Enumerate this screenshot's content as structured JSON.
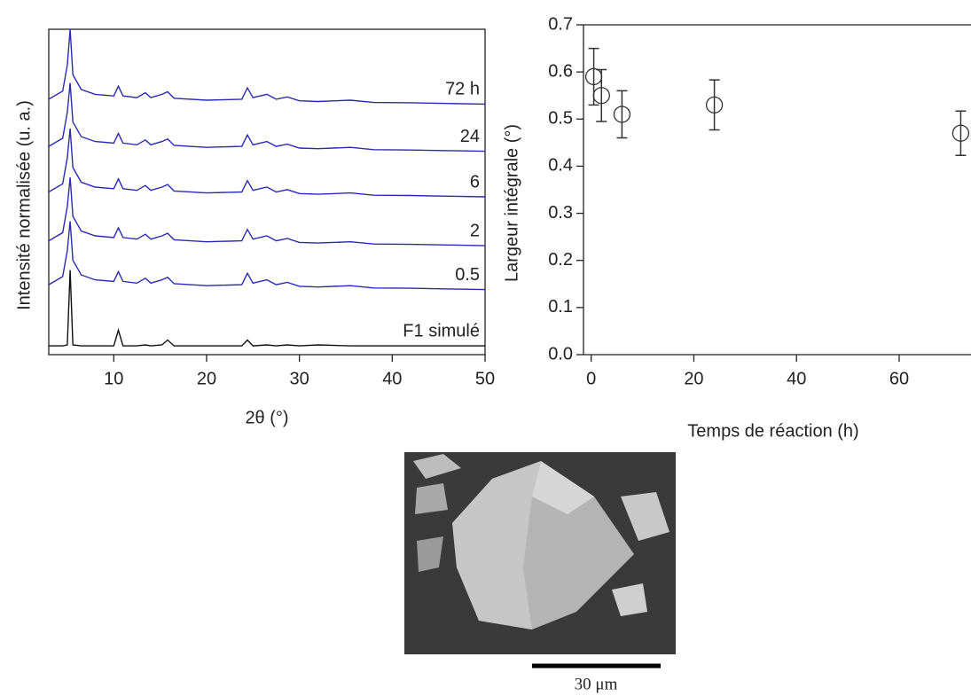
{
  "chart_data": [
    {
      "type": "line",
      "xlabel": "2θ (°)",
      "ylabel": "Intensité normalisée (u. a.)",
      "xlim": [
        3,
        50
      ],
      "ylim": [
        0,
        10
      ],
      "xticks": [
        10,
        20,
        30,
        40,
        50
      ],
      "x": [
        3,
        4.5,
        5.0,
        5.3,
        5.6,
        6.5,
        8,
        10,
        10.5,
        11,
        12.5,
        13.4,
        14,
        15.2,
        15.8,
        16.5,
        20,
        23.8,
        24.4,
        25,
        26.5,
        27.5,
        28.7,
        30,
        32,
        35.5,
        38,
        42,
        46,
        50
      ],
      "series": [
        {
          "name": "72 h",
          "color": "#2a2ab4",
          "values": [
            7.85,
            8.1,
            8.9,
            10,
            8.6,
            8.15,
            8,
            7.95,
            8.25,
            7.95,
            7.9,
            8.05,
            7.9,
            8,
            8.08,
            7.88,
            7.82,
            7.85,
            8.2,
            7.9,
            8,
            7.85,
            7.92,
            7.8,
            7.78,
            7.82,
            7.75,
            7.74,
            7.72,
            7.7
          ]
        },
        {
          "name": "24",
          "color": "#2a2ab4",
          "values": [
            6.4,
            6.65,
            7.45,
            8.35,
            7.15,
            6.7,
            6.55,
            6.5,
            6.8,
            6.5,
            6.45,
            6.6,
            6.45,
            6.55,
            6.63,
            6.43,
            6.37,
            6.4,
            6.75,
            6.45,
            6.55,
            6.4,
            6.47,
            6.35,
            6.33,
            6.37,
            6.3,
            6.29,
            6.27,
            6.25
          ]
        },
        {
          "name": "6",
          "color": "#2a2ab4",
          "values": [
            5,
            5.25,
            6.05,
            6.95,
            5.75,
            5.3,
            5.15,
            5.1,
            5.4,
            5.1,
            5.05,
            5.2,
            5.05,
            5.15,
            5.23,
            5.03,
            4.97,
            5,
            5.35,
            5.05,
            5.15,
            5,
            5.07,
            4.95,
            4.93,
            4.97,
            4.9,
            4.89,
            4.87,
            4.85
          ]
        },
        {
          "name": "2",
          "color": "#2a2ab4",
          "values": [
            3.5,
            3.75,
            4.55,
            5.45,
            4.25,
            3.8,
            3.65,
            3.6,
            3.9,
            3.6,
            3.55,
            3.7,
            3.55,
            3.65,
            3.73,
            3.53,
            3.47,
            3.5,
            3.85,
            3.55,
            3.65,
            3.5,
            3.57,
            3.45,
            3.43,
            3.47,
            3.4,
            3.39,
            3.37,
            3.35
          ]
        },
        {
          "name": "0.5",
          "color": "#2a2ab4",
          "values": [
            2.15,
            2.4,
            3.2,
            4.1,
            2.9,
            2.45,
            2.3,
            2.25,
            2.55,
            2.25,
            2.2,
            2.35,
            2.2,
            2.3,
            2.38,
            2.18,
            2.12,
            2.15,
            2.5,
            2.2,
            2.3,
            2.15,
            2.22,
            2.1,
            2.08,
            2.12,
            2.05,
            2.04,
            2.02,
            2
          ]
        },
        {
          "name": "F1 simulé",
          "color": "#111111",
          "values": [
            0.27,
            0.27,
            0.3,
            2.6,
            0.3,
            0.27,
            0.27,
            0.27,
            0.75,
            0.27,
            0.27,
            0.3,
            0.27,
            0.3,
            0.45,
            0.27,
            0.27,
            0.27,
            0.45,
            0.27,
            0.3,
            0.27,
            0.3,
            0.27,
            0.3,
            0.27,
            0.27,
            0.27,
            0.27,
            0.27
          ]
        }
      ]
    },
    {
      "type": "scatter",
      "xlabel": "Temps de réaction (h)",
      "ylabel": "Largeur intégrale (°)",
      "xlim": [
        -1.5,
        74
      ],
      "ylim": [
        0,
        0.7
      ],
      "xticks": [
        0,
        20,
        40,
        60
      ],
      "yticks": [
        {
          "value": 0,
          "label": "0.0"
        },
        0.1,
        0.2,
        0.3,
        0.4,
        0.5,
        0.6,
        0.7
      ],
      "x": [
        0.5,
        2,
        6,
        24,
        72
      ],
      "values": [
        0.59,
        0.55,
        0.51,
        0.53,
        0.47
      ],
      "errors": [
        0.06,
        0.055,
        0.05,
        0.053,
        0.047
      ],
      "color": "#333333"
    }
  ],
  "image": {
    "scale_bar": "30 μm"
  }
}
